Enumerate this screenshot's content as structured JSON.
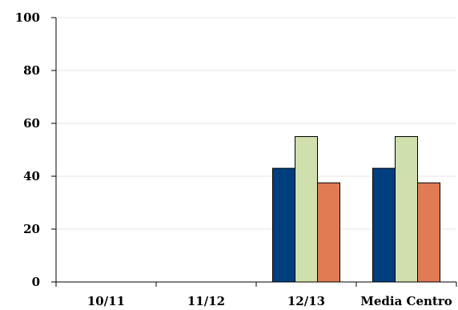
{
  "chart_data": {
    "type": "bar",
    "title": "",
    "xlabel": "",
    "ylabel": "",
    "categories": [
      "10/11",
      "11/12",
      "12/13",
      "Media Centro"
    ],
    "ylim": [
      0,
      100
    ],
    "yticks": [
      0,
      20,
      40,
      60,
      80,
      100
    ],
    "grid": true,
    "legend": "none",
    "series": [
      {
        "color": "#003f7f",
        "values": [
          null,
          null,
          43,
          43
        ]
      },
      {
        "color": "#cfe0ad",
        "values": [
          null,
          null,
          55,
          55
        ]
      },
      {
        "color": "#e07b54",
        "values": [
          null,
          null,
          37.5,
          37.5
        ]
      }
    ]
  }
}
